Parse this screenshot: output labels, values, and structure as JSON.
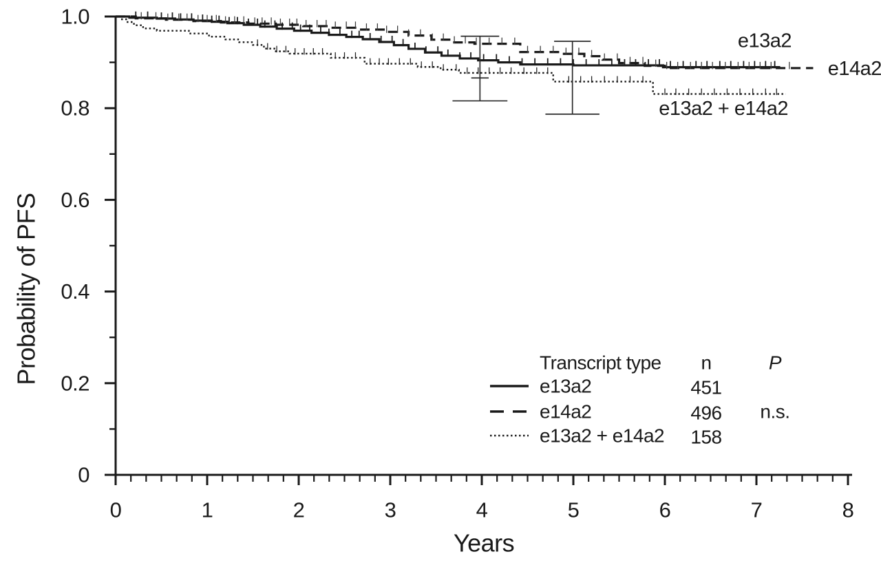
{
  "figure": {
    "background": "#ffffff",
    "ink": "#1a1a1a"
  },
  "chart_data": {
    "type": "line",
    "subtype": "kaplan_meier_step_survival",
    "title": "",
    "xlabel": "Years",
    "ylabel": "Probability of PFS",
    "xlim": [
      0,
      8
    ],
    "ylim": [
      0,
      1.0
    ],
    "grid": false,
    "legend_position": "inside lower right",
    "x_major": [
      0,
      1,
      2,
      3,
      4,
      5,
      6,
      7,
      8
    ],
    "x_labels": [
      "0",
      "1",
      "2",
      "3",
      "4",
      "5",
      "6",
      "7",
      "8"
    ],
    "x_minor_per_unit": 6,
    "y_major": [
      0,
      0.2,
      0.4,
      0.6,
      0.8,
      1.0
    ],
    "y_labels": [
      "0",
      "0.2",
      "0.4",
      "0.6",
      "0.8",
      "1.0"
    ],
    "y_minor": [
      0.1,
      0.3,
      0.5,
      0.7,
      0.9
    ],
    "series": [
      {
        "id": "e13a2",
        "line_style": "solid",
        "n": 451,
        "steps": [
          [
            0,
            1.0
          ],
          [
            0.15,
            0.9975
          ],
          [
            0.45,
            0.9955
          ],
          [
            0.65,
            0.9935
          ],
          [
            0.85,
            0.991
          ],
          [
            1.05,
            0.9885
          ],
          [
            1.22,
            0.9855
          ],
          [
            1.4,
            0.982
          ],
          [
            1.58,
            0.978
          ],
          [
            1.76,
            0.9735
          ],
          [
            1.95,
            0.969
          ],
          [
            2.14,
            0.9645
          ],
          [
            2.33,
            0.96
          ],
          [
            2.52,
            0.9555
          ],
          [
            2.7,
            0.9505
          ],
          [
            2.88,
            0.9445
          ],
          [
            3.04,
            0.9375
          ],
          [
            3.2,
            0.9295
          ],
          [
            3.38,
            0.9215
          ],
          [
            3.56,
            0.9145
          ],
          [
            3.76,
            0.9085
          ],
          [
            3.96,
            0.9045
          ],
          [
            4.18,
            0.9
          ],
          [
            4.42,
            0.8955
          ],
          [
            5.0,
            0.8935
          ],
          [
            5.98,
            0.8895
          ]
        ],
        "end_x": 7.26,
        "censor_x": [
          0.22,
          0.35,
          0.5,
          0.62,
          0.71,
          0.83,
          0.95,
          1.05,
          1.13,
          1.24,
          1.33,
          1.45,
          1.55,
          1.63,
          1.74,
          1.82,
          1.93,
          2.02,
          2.12,
          2.24,
          2.33,
          2.45,
          2.58,
          2.66,
          2.78,
          2.9,
          3.02,
          3.14,
          3.27,
          3.39,
          3.52,
          3.63,
          3.76,
          3.88,
          4.02,
          4.16,
          4.3,
          4.44,
          4.58,
          4.72,
          4.86,
          5.0,
          5.14,
          5.28,
          5.42,
          5.56,
          5.68,
          5.82,
          5.94,
          6.06,
          6.2,
          6.34,
          6.46,
          6.6,
          6.72,
          6.86,
          6.98,
          7.1,
          7.2
        ]
      },
      {
        "id": "e14a2",
        "line_style": "dashed",
        "n": 496,
        "steps": [
          [
            0,
            1.0
          ],
          [
            0.22,
            0.996
          ],
          [
            0.55,
            0.993
          ],
          [
            0.85,
            0.99
          ],
          [
            1.15,
            0.987
          ],
          [
            1.45,
            0.9845
          ],
          [
            1.75,
            0.982
          ],
          [
            2.05,
            0.979
          ],
          [
            2.35,
            0.9755
          ],
          [
            2.65,
            0.9715
          ],
          [
            2.95,
            0.9665
          ],
          [
            3.2,
            0.9585
          ],
          [
            3.45,
            0.9495
          ],
          [
            3.68,
            0.9435
          ],
          [
            3.92,
            0.9405
          ],
          [
            4.42,
            0.9225
          ],
          [
            4.85,
            0.9185
          ],
          [
            5.12,
            0.9135
          ],
          [
            5.32,
            0.906
          ],
          [
            5.5,
            0.8985
          ],
          [
            5.78,
            0.8925
          ],
          [
            6.0,
            0.8875
          ]
        ],
        "end_x": 7.62,
        "censor_x": [
          0.28,
          0.44,
          0.57,
          0.69,
          0.78,
          0.9,
          1.0,
          1.1,
          1.2,
          1.3,
          1.4,
          1.52,
          1.6,
          1.7,
          1.8,
          1.9,
          1.98,
          2.08,
          2.2,
          2.3,
          2.4,
          2.52,
          2.62,
          2.74,
          2.86,
          2.96,
          3.08,
          3.2,
          3.33,
          3.46,
          3.58,
          3.7,
          3.82,
          3.94,
          4.08,
          4.22,
          4.36,
          4.5,
          4.64,
          4.78,
          4.92,
          5.06,
          5.2,
          5.34,
          5.48,
          5.62,
          5.76,
          5.9,
          6.02,
          6.14,
          6.28,
          6.4,
          6.52,
          6.66,
          6.8,
          6.92,
          7.04,
          7.16,
          7.36
        ]
      },
      {
        "id": "e13a2_plus_e14a2",
        "line_style": "dotted",
        "n": 158,
        "steps": [
          [
            0,
            1.0
          ],
          [
            0.06,
            0.994
          ],
          [
            0.13,
            0.988
          ],
          [
            0.2,
            0.981
          ],
          [
            0.3,
            0.974
          ],
          [
            0.45,
            0.969
          ],
          [
            0.8,
            0.963
          ],
          [
            1.02,
            0.956
          ],
          [
            1.2,
            0.95
          ],
          [
            1.35,
            0.944
          ],
          [
            1.5,
            0.938
          ],
          [
            1.62,
            0.93
          ],
          [
            1.75,
            0.924
          ],
          [
            1.9,
            0.919
          ],
          [
            2.35,
            0.91
          ],
          [
            2.72,
            0.897
          ],
          [
            3.3,
            0.89
          ],
          [
            3.55,
            0.884
          ],
          [
            3.75,
            0.877
          ],
          [
            4.78,
            0.858
          ],
          [
            5.87,
            0.831
          ]
        ],
        "end_x": 7.32,
        "censor_x": [
          1.55,
          1.66,
          1.76,
          1.86,
          1.96,
          2.06,
          2.16,
          2.26,
          2.4,
          2.5,
          2.62,
          2.78,
          2.88,
          2.98,
          3.1,
          3.22,
          3.34,
          3.46,
          3.58,
          3.72,
          3.84,
          3.96,
          4.08,
          4.2,
          4.32,
          4.46,
          4.6,
          4.72,
          4.95,
          5.08,
          5.2,
          5.34,
          5.48,
          5.62,
          5.76,
          6.0,
          6.12,
          6.26,
          6.4,
          6.54,
          6.68,
          6.82,
          6.96,
          7.1,
          7.22
        ]
      }
    ],
    "error_bars": [
      {
        "x": 3.98,
        "top": 0.957,
        "bottom": 0.816,
        "mid": 0.866,
        "cap_w_top": 0.42,
        "cap_w_bottom": 0.6,
        "cap_w_mid": 0.19
      },
      {
        "x": 4.99,
        "top": 0.946,
        "bottom": 0.787,
        "cap_w_top": 0.4,
        "cap_w_bottom": 0.59
      }
    ],
    "curve_labels": [
      {
        "text": "e13a2",
        "x": 7.09,
        "y": 0.947,
        "anchor": "middle"
      },
      {
        "text": "e14a2",
        "x": 7.78,
        "y": 0.886,
        "anchor": "start"
      },
      {
        "text": "e13a2 + e14a2",
        "x": 6.64,
        "y": 0.799,
        "anchor": "middle"
      }
    ]
  },
  "legend": {
    "headers": {
      "transcript_type": "Transcript type",
      "n": "n",
      "p": "P"
    },
    "rows": [
      {
        "label": "e13a2",
        "n": "451",
        "p": "",
        "style": "solid"
      },
      {
        "label": "e14a2",
        "n": "496",
        "p": "n.s.",
        "style": "dashed"
      },
      {
        "label": "e13a2 + e14a2",
        "n": "158",
        "p": "",
        "style": "dotted"
      }
    ]
  }
}
